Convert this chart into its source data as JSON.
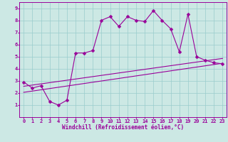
{
  "title": "",
  "xlabel": "Windchill (Refroidissement éolien,°C)",
  "ylabel": "",
  "bg_color": "#cce8e4",
  "grid_color": "#99cccc",
  "line_color": "#990099",
  "xlim": [
    -0.5,
    23.5
  ],
  "ylim": [
    0,
    9.5
  ],
  "xticks": [
    0,
    1,
    2,
    3,
    4,
    5,
    6,
    7,
    8,
    9,
    10,
    11,
    12,
    13,
    14,
    15,
    16,
    17,
    18,
    19,
    20,
    21,
    22,
    23
  ],
  "yticks": [
    1,
    2,
    3,
    4,
    5,
    6,
    7,
    8,
    9
  ],
  "line1_x": [
    0,
    1,
    2,
    3,
    4,
    5,
    6,
    7,
    8,
    9,
    10,
    11,
    12,
    13,
    14,
    15,
    16,
    17,
    18,
    19,
    20,
    21,
    22,
    23
  ],
  "line1_y": [
    2.9,
    2.4,
    2.6,
    1.3,
    1.0,
    1.4,
    5.3,
    5.3,
    5.5,
    8.0,
    8.3,
    7.5,
    8.3,
    8.0,
    7.9,
    8.8,
    8.0,
    7.3,
    5.4,
    8.5,
    5.0,
    4.7,
    4.5,
    4.4
  ],
  "line2_x": [
    0,
    23
  ],
  "line2_y": [
    2.55,
    4.85
  ],
  "line3_x": [
    0,
    23
  ],
  "line3_y": [
    2.05,
    4.45
  ],
  "marker": "D",
  "markersize": 2.5,
  "linewidth": 0.8,
  "tick_fontsize": 5.0,
  "label_fontsize": 5.5
}
